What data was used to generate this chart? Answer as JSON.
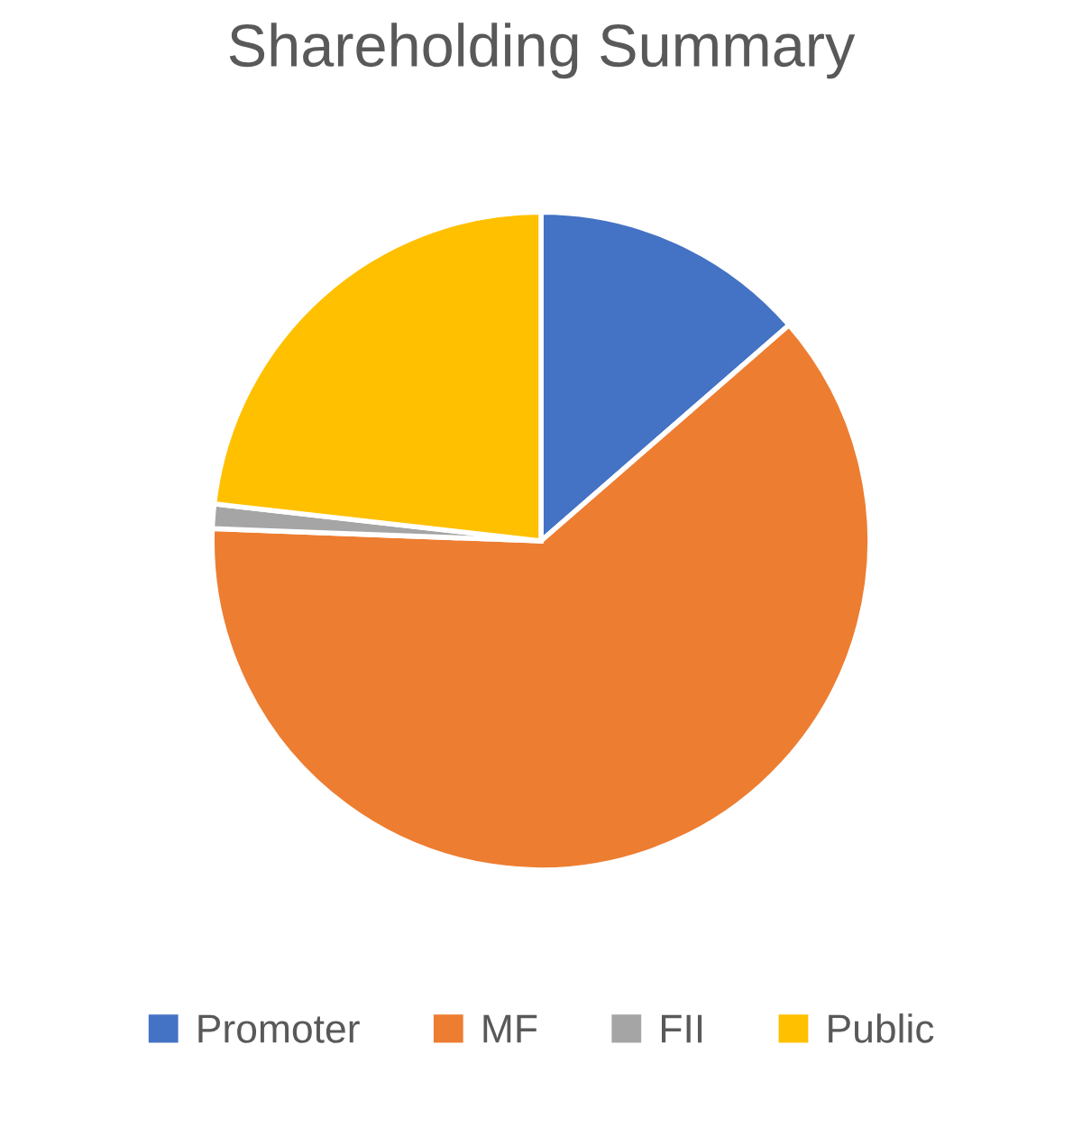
{
  "chart_data": {
    "type": "pie",
    "title": "Shareholding Summary",
    "categories": [
      "Promoter",
      "MF",
      "FII",
      "Public"
    ],
    "values": [
      13.6,
      62.0,
      1.2,
      23.2
    ],
    "colors": [
      "#4472c4",
      "#ed7d31",
      "#a5a5a5",
      "#ffc000"
    ],
    "legend": "bottom"
  }
}
